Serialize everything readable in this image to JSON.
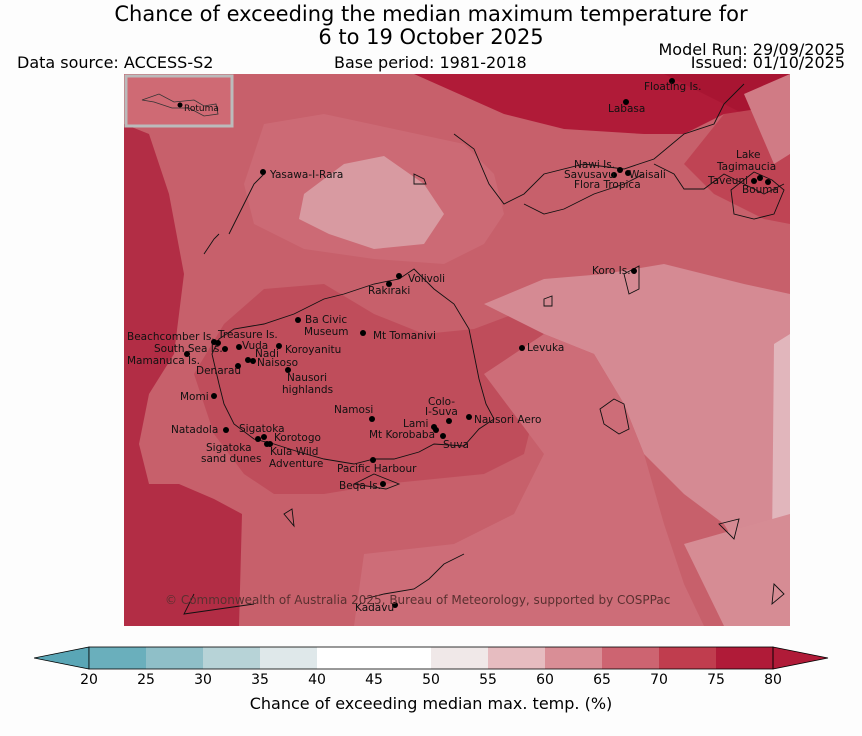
{
  "header": {
    "title_line1": "Chance of exceeding the median maximum temperature for",
    "title_line2": "6 to 19 October 2025",
    "data_source": "Data source: ACCESS-S2",
    "base_period": "Base period: 1981-2018",
    "model_run": "Model Run: 29/09/2025",
    "issued": "Issued: 01/10/2025"
  },
  "inset": {
    "label": "Rotuma"
  },
  "places": [
    "Floating Is.",
    "Labasa",
    "Yasawa-I-Rara",
    "Nawi Is.",
    "Savusavu",
    "Waisali",
    "Flora Tropica",
    "Lake",
    "Tagimaucia",
    "Taveuni",
    "Bouma",
    "Koro Is.",
    "Volivoli",
    "Rakiraki",
    "Ba Civic",
    "Museum",
    "Mt Tomanivi",
    "Beachcomber Is.",
    "Treasure Is.",
    "South Sea Is.",
    "Vuda",
    "Koroyanitu",
    "Nadi",
    "Mamanuca Is.",
    "Naisoso",
    "Denarau",
    "Nausori",
    "highlands",
    "Levuka",
    "Momi",
    "Colo-",
    "I-Suva",
    "Namosi",
    "Lami",
    "Nausori Aero",
    "Mt Korobaba",
    "Natadola",
    "Suva",
    "Sigatoka",
    "Korotogo",
    "Sigatoka",
    "sand dunes",
    "Kula Wild",
    "Adventure",
    "Pacific Harbour",
    "Beqa Is.",
    "Kadavu"
  ],
  "copyright": "© Commonwealth of Australia 2025, Bureau of Meteorology, supported by COSPPac",
  "colorbar": {
    "label": "Chance of exceeding median max. temp. (%)",
    "ticks": [
      "20",
      "25",
      "30",
      "35",
      "40",
      "45",
      "50",
      "55",
      "60",
      "65",
      "70",
      "75",
      "80"
    ],
    "colors": [
      "#5aa6b6",
      "#6aafbc",
      "#8fbfc8",
      "#b7d3d7",
      "#dfe8ea",
      "#ffffff",
      "#ffffff",
      "#f0e8e8",
      "#e6bcc0",
      "#d98e96",
      "#cd6471",
      "#c03d4e",
      "#b01b38",
      "#b01b38"
    ]
  }
}
